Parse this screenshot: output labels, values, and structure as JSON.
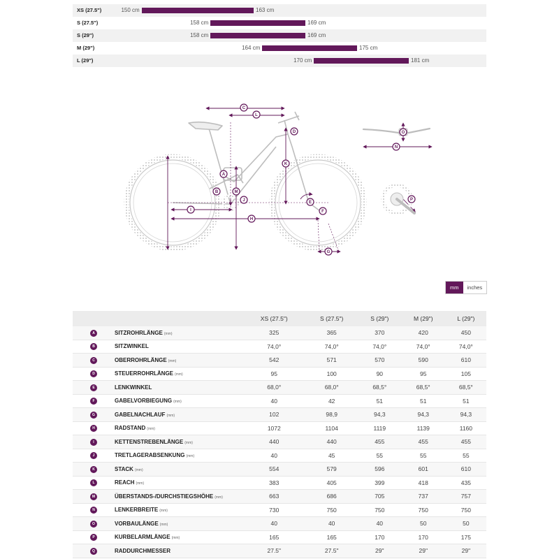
{
  "size_chart": [
    {
      "label": "XS (27.5\")",
      "min": 150,
      "max": 163,
      "min_text": "150 cm",
      "max_text": "163 cm"
    },
    {
      "label": "S (27.5\")",
      "min": 158,
      "max": 169,
      "min_text": "158 cm",
      "max_text": "169 cm"
    },
    {
      "label": "S (29\")",
      "min": 158,
      "max": 169,
      "min_text": "158 cm",
      "max_text": "169 cm"
    },
    {
      "label": "M (29\")",
      "min": 164,
      "max": 175,
      "min_text": "164 cm",
      "max_text": "175 cm"
    },
    {
      "label": "L (29\")",
      "min": 170,
      "max": 181,
      "min_text": "170 cm",
      "max_text": "181 cm"
    }
  ],
  "size_scale": [
    142,
    190
  ],
  "units": {
    "mm": "mm",
    "inches": "inches",
    "selected": "mm"
  },
  "colors": {
    "accent": "#62185a",
    "frame_outline": "#bfbfbf"
  },
  "diagram_letters": [
    "A",
    "B",
    "C",
    "D",
    "E",
    "F",
    "G",
    "H",
    "I",
    "J",
    "K",
    "L",
    "M",
    "N",
    "O",
    "P"
  ],
  "table": {
    "headers": [
      "XS (27.5\")",
      "S (27.5\")",
      "S (29\")",
      "M (29\")",
      "L (29\")"
    ],
    "rows": [
      {
        "letter": "A",
        "name": "SITZROHRLÄNGE",
        "unit": "(mm)",
        "values": [
          "325",
          "365",
          "370",
          "420",
          "450"
        ]
      },
      {
        "letter": "B",
        "name": "SITZWINKEL",
        "unit": "",
        "values": [
          "74,0°",
          "74,0°",
          "74,0°",
          "74,0°",
          "74,0°"
        ]
      },
      {
        "letter": "C",
        "name": "OBERROHRLÄNGE",
        "unit": "(mm)",
        "values": [
          "542",
          "571",
          "570",
          "590",
          "610"
        ]
      },
      {
        "letter": "D",
        "name": "STEUERROHRLÄNGE",
        "unit": "(mm)",
        "values": [
          "95",
          "100",
          "90",
          "95",
          "105"
        ]
      },
      {
        "letter": "E",
        "name": "LENKWINKEL",
        "unit": "",
        "values": [
          "68,0°",
          "68,0°",
          "68,5°",
          "68,5°",
          "68,5°"
        ]
      },
      {
        "letter": "F",
        "name": "GABELVORBIEGUNG",
        "unit": "(mm)",
        "values": [
          "40",
          "42",
          "51",
          "51",
          "51"
        ]
      },
      {
        "letter": "G",
        "name": "GABELNACHLAUF",
        "unit": "(mm)",
        "values": [
          "102",
          "98,9",
          "94,3",
          "94,3",
          "94,3"
        ]
      },
      {
        "letter": "H",
        "name": "RADSTAND",
        "unit": "(mm)",
        "values": [
          "1072",
          "1104",
          "1119",
          "1139",
          "1160"
        ]
      },
      {
        "letter": "I",
        "name": "KETTENSTREBENLÄNGE",
        "unit": "(mm)",
        "values": [
          "440",
          "440",
          "455",
          "455",
          "455"
        ]
      },
      {
        "letter": "J",
        "name": "TRETLAGERABSENKUNG",
        "unit": "(mm)",
        "values": [
          "40",
          "45",
          "55",
          "55",
          "55"
        ]
      },
      {
        "letter": "K",
        "name": "STACK",
        "unit": "(mm)",
        "values": [
          "554",
          "579",
          "596",
          "601",
          "610"
        ]
      },
      {
        "letter": "L",
        "name": "REACH",
        "unit": "(mm)",
        "values": [
          "383",
          "405",
          "399",
          "418",
          "435"
        ]
      },
      {
        "letter": "M",
        "name": "ÜBERSTANDS-/DURCHSTIEGSHÖHE",
        "unit": "(mm)",
        "values": [
          "663",
          "686",
          "705",
          "737",
          "757"
        ]
      },
      {
        "letter": "N",
        "name": "LENKERBREITE",
        "unit": "(mm)",
        "values": [
          "730",
          "750",
          "750",
          "750",
          "750"
        ]
      },
      {
        "letter": "O",
        "name": "VORBAULÄNGE",
        "unit": "(mm)",
        "values": [
          "40",
          "40",
          "40",
          "50",
          "50"
        ]
      },
      {
        "letter": "P",
        "name": "KURBELARMLÄNGE",
        "unit": "(mm)",
        "values": [
          "165",
          "165",
          "170",
          "170",
          "175"
        ]
      },
      {
        "letter": "Q",
        "name": "RADDURCHMESSER",
        "unit": "",
        "values": [
          "27.5\"",
          "27.5\"",
          "29\"",
          "29\"",
          "29\""
        ]
      }
    ]
  }
}
